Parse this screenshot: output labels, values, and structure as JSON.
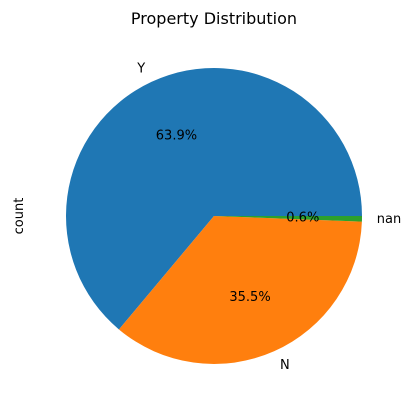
{
  "chart_data": {
    "type": "pie",
    "title": "Property Distribution",
    "ylabel": "count",
    "slices": [
      {
        "label": "Y",
        "value": 63.9,
        "pct_label": "63.9%",
        "color": "#1f77b4"
      },
      {
        "label": "N",
        "value": 35.5,
        "pct_label": "35.5%",
        "color": "#ff7f0e"
      },
      {
        "label": "nan",
        "value": 0.6,
        "pct_label": "0.6%",
        "color": "#2ca02c"
      }
    ],
    "start_angle": "0° (3 o'clock), counter-clockwise",
    "legend": "none"
  }
}
